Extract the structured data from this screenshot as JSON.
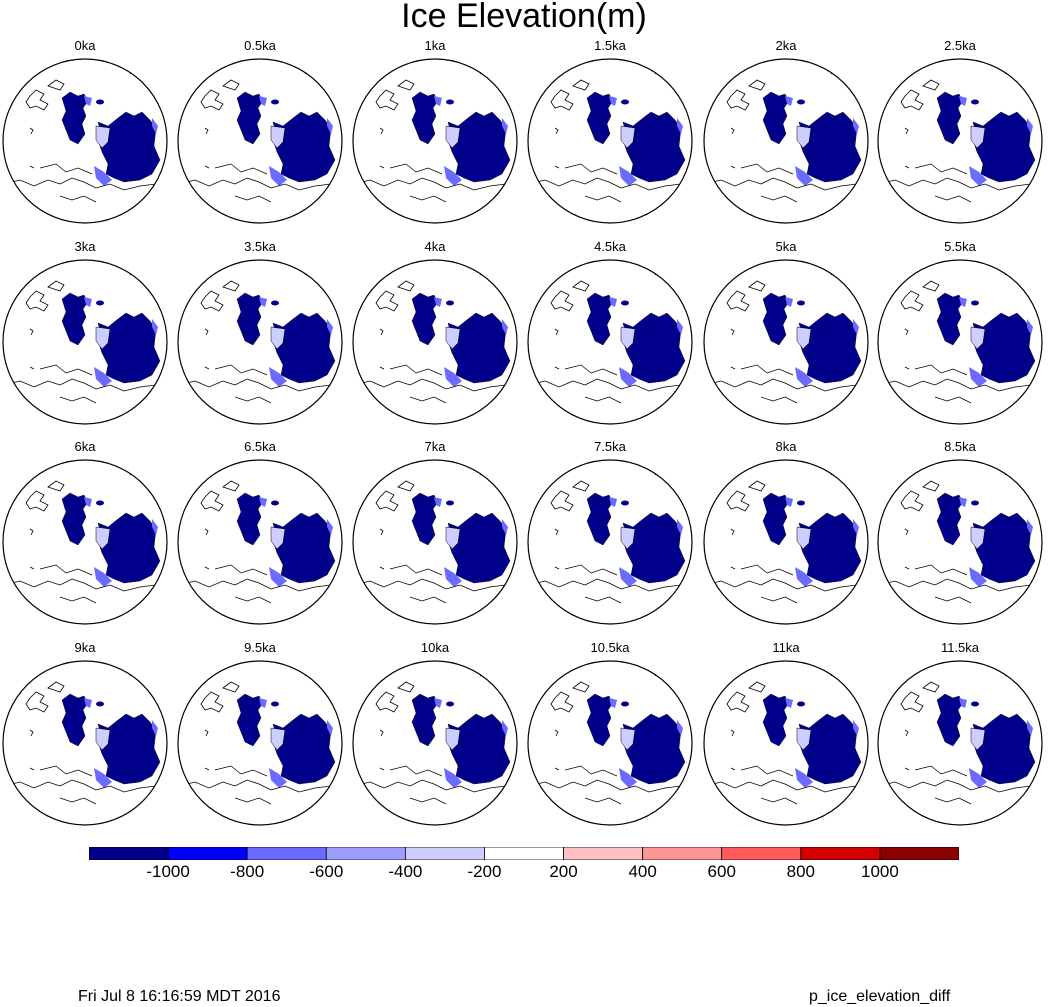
{
  "title": "Ice Elevation(m)",
  "panels": [
    "0ka",
    "0.5ka",
    "1ka",
    "1.5ka",
    "2ka",
    "2.5ka",
    "3ka",
    "3.5ka",
    "4ka",
    "4.5ka",
    "5ka",
    "5.5ka",
    "6ka",
    "6.5ka",
    "7ka",
    "7.5ka",
    "8ka",
    "8.5ka",
    "9ka",
    "9.5ka",
    "10ka",
    "10.5ka",
    "11ka",
    "11.5ka"
  ],
  "colorbar": {
    "colors": [
      "#00008b",
      "#0000ff",
      "#6b6bff",
      "#9e9eff",
      "#cdcdff",
      "#ffffff",
      "#ffc2c2",
      "#ff9696",
      "#ff5c5c",
      "#d20000",
      "#8b0000"
    ],
    "labels": [
      "-1000",
      "-800",
      "-600",
      "-400",
      "-200",
      "200",
      "400",
      "600",
      "800",
      "1000"
    ]
  },
  "footer": {
    "timestamp": "Fri Jul  8 16:16:59 MDT 2016",
    "script_name": "p_ice_elevation_diff"
  },
  "colors": {
    "ice_dark": "#00008b",
    "ice_light": "#6b6bff",
    "ice_pale": "#cdcdff"
  }
}
